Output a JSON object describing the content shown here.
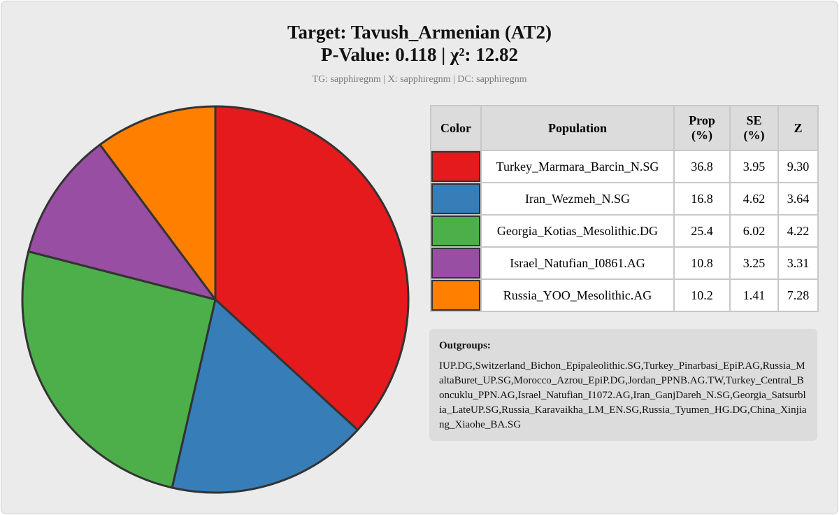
{
  "chart_data": {
    "type": "pie",
    "title": "Target: Tavush_Armenian (AT2)",
    "subtitle_line": "P-Value: 0.118 | χ²: 12.82",
    "caption": "TG: sapphiregnm | X: sapphiregnm | DC: sapphiregnm",
    "categories": [
      "Turkey_Marmara_Barcin_N.SG",
      "Iran_Wezmeh_N.SG",
      "Georgia_Kotias_Mesolithic.DG",
      "Israel_Natufian_I0861.AG",
      "Russia_YOO_Mesolithic.AG"
    ],
    "values": [
      36.8,
      16.8,
      25.4,
      10.8,
      10.2
    ],
    "colors": [
      "#e41a1c",
      "#377eb8",
      "#4daf4a",
      "#984ea3",
      "#ff7f00"
    ]
  },
  "table": {
    "headers": [
      "Color",
      "Population",
      "Prop (%)",
      "SE (%)",
      "Z"
    ],
    "se": [
      "3.95",
      "4.62",
      "6.02",
      "3.25",
      "1.41"
    ],
    "z": [
      "9.30",
      "3.64",
      "4.22",
      "3.31",
      "7.28"
    ]
  },
  "outgroups": {
    "label": "Outgroups:",
    "text": "IUP.DG,Switzerland_Bichon_Epipaleolithic.SG,Turkey_Pinarbasi_EpiP.AG,Russia_MaltaBuret_UP.SG,Morocco_Azrou_EpiP.DG,Jordan_PPNB.AG.TW,Turkey_Central_Boncuklu_PPN.AG,Israel_Natufian_I1072.AG,Iran_GanjDareh_N.SG,Georgia_Satsurblia_LateUP.SG,Russia_Karavaikha_LM_EN.SG,Russia_Tyumen_HG.DG,China_Xinjiang_Xiaohe_BA.SG"
  }
}
